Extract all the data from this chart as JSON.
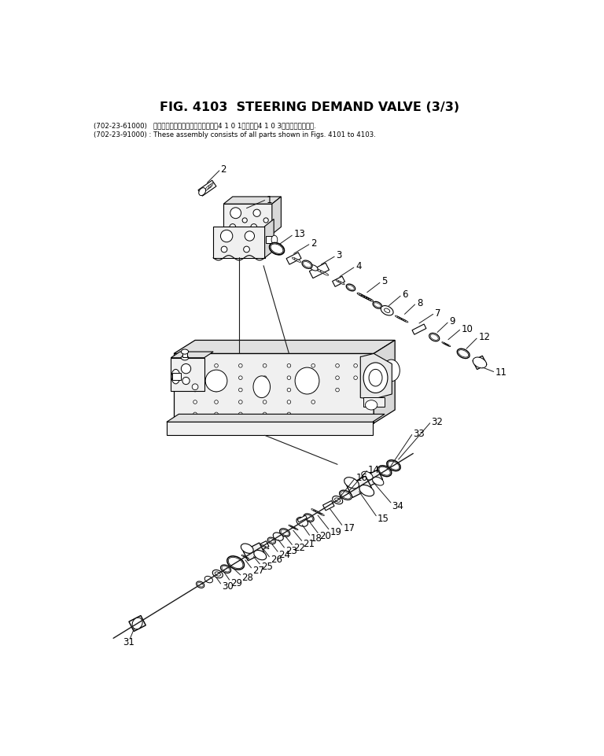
{
  "title": "FIG. 4103  STEERING DEMAND VALVE (3/3)",
  "title_fontsize": 11.5,
  "subtitle1": "(702-23-61000)   これらのアセンブリの構成部品は第4 1 0 1図から第4 1 0 3図まででおみます.",
  "subtitle2": "(702-23-91000) : These assembly consists of all parts shown in Figs. 4101 to 4103.",
  "bg_color": "#ffffff",
  "line_color": "#1a1a1a",
  "label_fontsize": 8.5
}
